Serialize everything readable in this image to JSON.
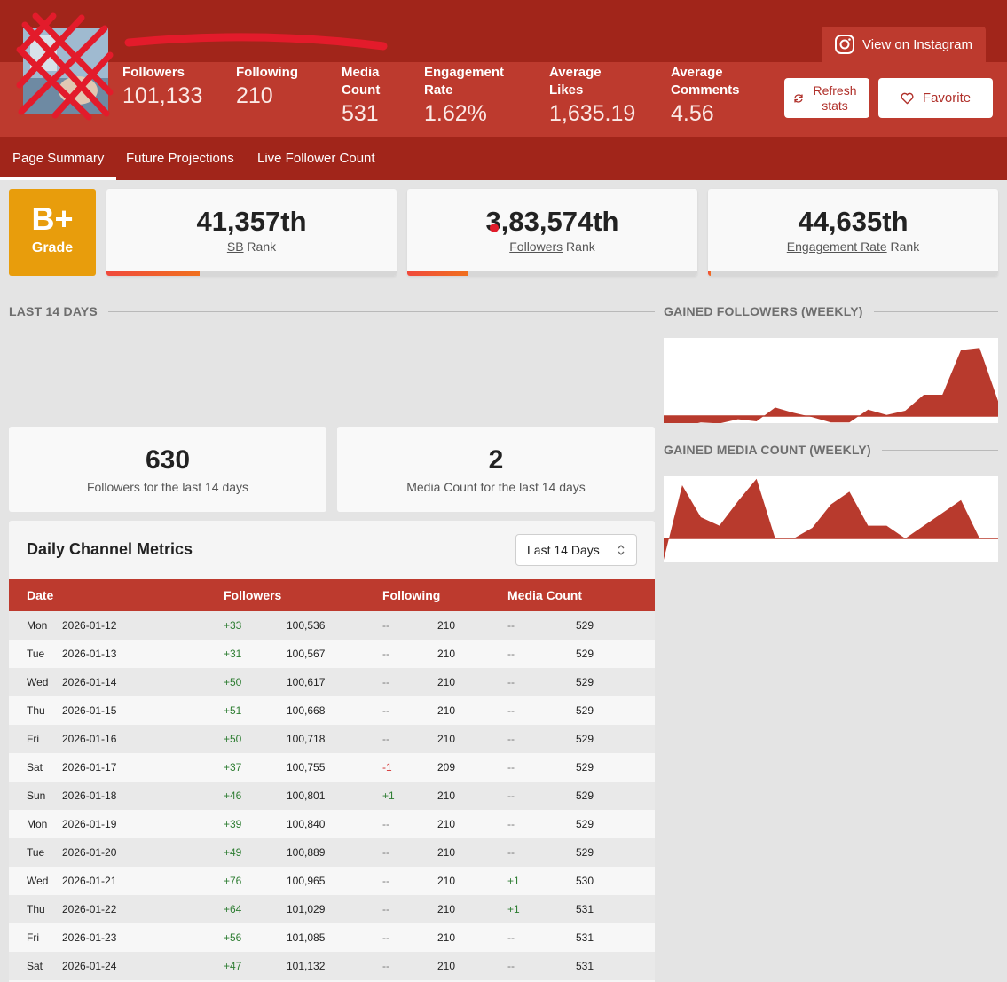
{
  "header": {
    "view_on_instagram": "View on Instagram",
    "refresh_label": "Refresh stats",
    "favorite_label": "Favorite",
    "stats": [
      {
        "label": "Followers",
        "value": "101,133"
      },
      {
        "label": "Following",
        "value": "210"
      },
      {
        "label": "Media Count",
        "value": "531"
      },
      {
        "label": "Engagement Rate",
        "value": "1.62%"
      },
      {
        "label": "Average Likes",
        "value": "1,635.19"
      },
      {
        "label": "Average Comments",
        "value": "4.56"
      }
    ]
  },
  "tabs": [
    "Page Summary",
    "Future Projections",
    "Live Follower Count"
  ],
  "grade": {
    "value": "B+",
    "label": "Grade"
  },
  "ranks": [
    {
      "value": "41,357th",
      "label_u": "SB",
      "label_rest": " Rank",
      "progress": 0.32
    },
    {
      "value": "3,83,574th",
      "label_u": "Followers",
      "label_rest": " Rank",
      "progress": 0.21
    },
    {
      "value": "44,635th",
      "label_u": "Engagement Rate",
      "label_rest": " Rank",
      "progress": 0.01
    }
  ],
  "sections": {
    "last14": "LAST 14 DAYS",
    "gained_followers": "GAINED FOLLOWERS (WEEKLY)",
    "gained_media": "GAINED MEDIA COUNT (WEEKLY)"
  },
  "summary": [
    {
      "value": "630",
      "label": "Followers for the last 14 days"
    },
    {
      "value": "2",
      "label": "Media Count for the last 14 days"
    }
  ],
  "table": {
    "title": "Daily Channel Metrics",
    "range": "Last 14 Days",
    "headers": [
      "Date",
      "Followers",
      "Following",
      "Media Count"
    ],
    "rows": [
      {
        "day": "Mon",
        "date": "2026-01-12",
        "f_delta": "+33",
        "followers": "100,536",
        "fw_delta": "--",
        "following": "210",
        "m_delta": "--",
        "media": "529"
      },
      {
        "day": "Tue",
        "date": "2026-01-13",
        "f_delta": "+31",
        "followers": "100,567",
        "fw_delta": "--",
        "following": "210",
        "m_delta": "--",
        "media": "529"
      },
      {
        "day": "Wed",
        "date": "2026-01-14",
        "f_delta": "+50",
        "followers": "100,617",
        "fw_delta": "--",
        "following": "210",
        "m_delta": "--",
        "media": "529"
      },
      {
        "day": "Thu",
        "date": "2026-01-15",
        "f_delta": "+51",
        "followers": "100,668",
        "fw_delta": "--",
        "following": "210",
        "m_delta": "--",
        "media": "529"
      },
      {
        "day": "Fri",
        "date": "2026-01-16",
        "f_delta": "+50",
        "followers": "100,718",
        "fw_delta": "--",
        "following": "210",
        "m_delta": "--",
        "media": "529"
      },
      {
        "day": "Sat",
        "date": "2026-01-17",
        "f_delta": "+37",
        "followers": "100,755",
        "fw_delta": "-1",
        "following": "209",
        "m_delta": "--",
        "media": "529"
      },
      {
        "day": "Sun",
        "date": "2026-01-18",
        "f_delta": "+46",
        "followers": "100,801",
        "fw_delta": "+1",
        "following": "210",
        "m_delta": "--",
        "media": "529"
      },
      {
        "day": "Mon",
        "date": "2026-01-19",
        "f_delta": "+39",
        "followers": "100,840",
        "fw_delta": "--",
        "following": "210",
        "m_delta": "--",
        "media": "529"
      },
      {
        "day": "Tue",
        "date": "2026-01-20",
        "f_delta": "+49",
        "followers": "100,889",
        "fw_delta": "--",
        "following": "210",
        "m_delta": "--",
        "media": "529"
      },
      {
        "day": "Wed",
        "date": "2026-01-21",
        "f_delta": "+76",
        "followers": "100,965",
        "fw_delta": "--",
        "following": "210",
        "m_delta": "+1",
        "media": "530"
      },
      {
        "day": "Thu",
        "date": "2026-01-22",
        "f_delta": "+64",
        "followers": "101,029",
        "fw_delta": "--",
        "following": "210",
        "m_delta": "+1",
        "media": "531"
      },
      {
        "day": "Fri",
        "date": "2026-01-23",
        "f_delta": "+56",
        "followers": "101,085",
        "fw_delta": "--",
        "following": "210",
        "m_delta": "--",
        "media": "531"
      },
      {
        "day": "Sat",
        "date": "2026-01-24",
        "f_delta": "+47",
        "followers": "101,132",
        "fw_delta": "--",
        "following": "210",
        "m_delta": "--",
        "media": "531"
      }
    ]
  },
  "colors": {
    "header_dark": "#a1251a",
    "header_light": "#bd3a2e",
    "grade": "#e89d0c",
    "positive": "#2e7d32",
    "negative": "#d32f2f"
  },
  "chart_data": [
    {
      "type": "area",
      "series": [
        {
          "values": [
            -8,
            -10,
            -6,
            -7,
            -3,
            -5,
            8,
            3,
            -1,
            -6,
            -6,
            6,
            1,
            5,
            20,
            20,
            62,
            64,
            14
          ]
        }
      ]
    },
    {
      "type": "area",
      "series": [
        {
          "values": [
            -20,
            50,
            20,
            12,
            35,
            56,
            0,
            0,
            10,
            32,
            44,
            12,
            12,
            0,
            12,
            24,
            36,
            0,
            0
          ]
        }
      ]
    }
  ]
}
